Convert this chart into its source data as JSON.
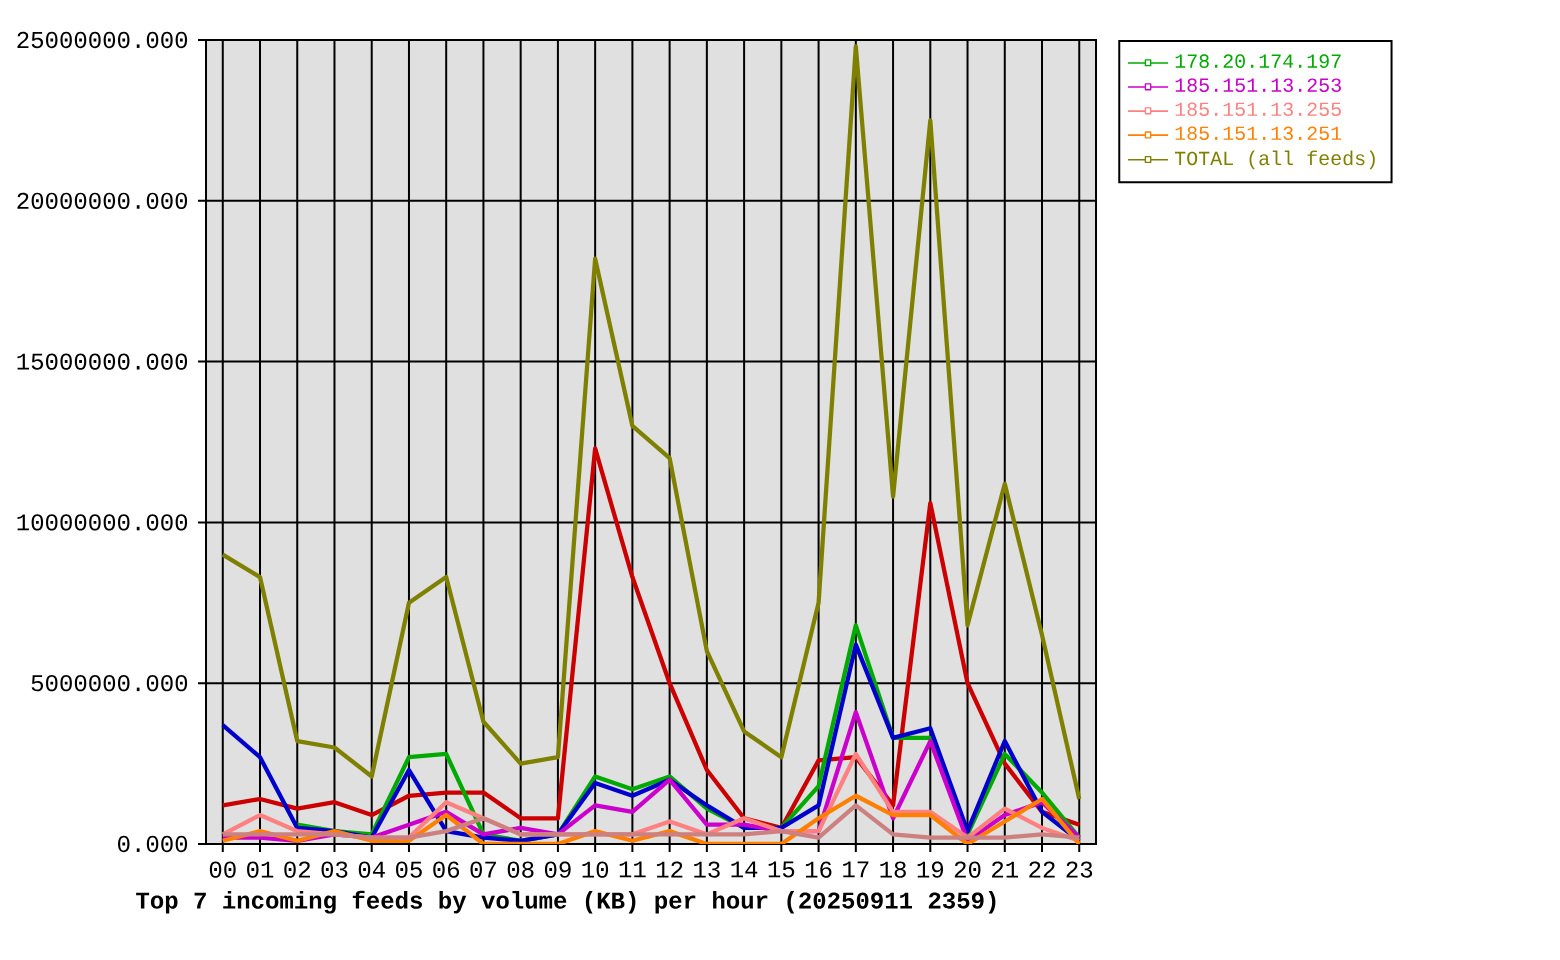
{
  "chart_data": {
    "type": "line",
    "xlabel": "Top 7 incoming feeds by volume (KB) per hour (20250911 2359)",
    "categories": [
      "00",
      "01",
      "02",
      "03",
      "04",
      "05",
      "06",
      "07",
      "08",
      "09",
      "10",
      "11",
      "12",
      "13",
      "14",
      "15",
      "16",
      "17",
      "18",
      "19",
      "20",
      "21",
      "22",
      "23"
    ],
    "ylim": [
      0,
      25000000
    ],
    "yticks": [
      {
        "value": 0,
        "label": "0.000"
      },
      {
        "value": 5000000,
        "label": "5000000.000"
      },
      {
        "value": 10000000,
        "label": "10000000.000"
      },
      {
        "value": 15000000,
        "label": "15000000.000"
      },
      {
        "value": 20000000,
        "label": "20000000.000"
      },
      {
        "value": 25000000,
        "label": "25000000.000"
      }
    ],
    "grid": true,
    "legend": "right",
    "series": [
      {
        "color": "#cc0000",
        "values": [
          1200000,
          1400000,
          1100000,
          1300000,
          900000,
          1500000,
          1600000,
          1600000,
          800000,
          800000,
          12300000,
          8300000,
          5000000,
          2300000,
          800000,
          500000,
          2600000,
          2700000,
          1200000,
          10600000,
          5000000,
          2500000,
          1000000,
          600000
        ]
      },
      {
        "name": "178.20.174.197",
        "color": "#00aa00",
        "values": [
          null,
          null,
          600000,
          400000,
          300000,
          2700000,
          2800000,
          300000,
          100000,
          300000,
          2100000,
          1700000,
          2100000,
          1100000,
          500000,
          500000,
          1800000,
          6800000,
          3300000,
          3300000,
          300000,
          2800000,
          1600000,
          200000
        ]
      },
      {
        "color": "#0000cc",
        "values": [
          3700000,
          2700000,
          500000,
          400000,
          200000,
          2300000,
          400000,
          200000,
          100000,
          300000,
          1900000,
          1500000,
          2000000,
          1200000,
          500000,
          500000,
          1200000,
          6200000,
          3300000,
          3600000,
          400000,
          3200000,
          1000000,
          100000
        ]
      },
      {
        "name": "185.151.13.253",
        "color": "#cc00cc",
        "values": [
          200000,
          200000,
          100000,
          300000,
          200000,
          600000,
          1000000,
          300000,
          500000,
          300000,
          1200000,
          1000000,
          2000000,
          600000,
          600000,
          400000,
          400000,
          4100000,
          800000,
          3200000,
          100000,
          900000,
          1300000,
          200000
        ]
      },
      {
        "name": "185.151.13.255",
        "color": "#ff8080",
        "values": [
          300000,
          900000,
          400000,
          300000,
          200000,
          200000,
          1300000,
          800000,
          300000,
          300000,
          300000,
          300000,
          700000,
          300000,
          800000,
          400000,
          400000,
          2800000,
          1000000,
          1000000,
          200000,
          1100000,
          500000,
          100000
        ]
      },
      {
        "name": "185.151.13.251",
        "color": "#ff8000",
        "values": [
          100000,
          400000,
          100000,
          400000,
          100000,
          100000,
          900000,
          0,
          0,
          0,
          400000,
          100000,
          400000,
          0,
          0,
          0,
          800000,
          1500000,
          900000,
          900000,
          0,
          700000,
          1400000,
          0
        ]
      },
      {
        "color": "#cc8080",
        "values": [
          300000,
          300000,
          300000,
          300000,
          200000,
          200000,
          400000,
          800000,
          300000,
          300000,
          300000,
          300000,
          300000,
          300000,
          300000,
          400000,
          200000,
          1200000,
          300000,
          200000,
          200000,
          200000,
          300000,
          200000
        ]
      },
      {
        "name": "TOTAL (all feeds)",
        "color": "#808000",
        "values": [
          9000000,
          8300000,
          3200000,
          3000000,
          2100000,
          7500000,
          8300000,
          3800000,
          2500000,
          2700000,
          18200000,
          13000000,
          12000000,
          6000000,
          3500000,
          2700000,
          7500000,
          24800000,
          10800000,
          22500000,
          6800000,
          11200000,
          6500000,
          1400000
        ]
      }
    ]
  }
}
